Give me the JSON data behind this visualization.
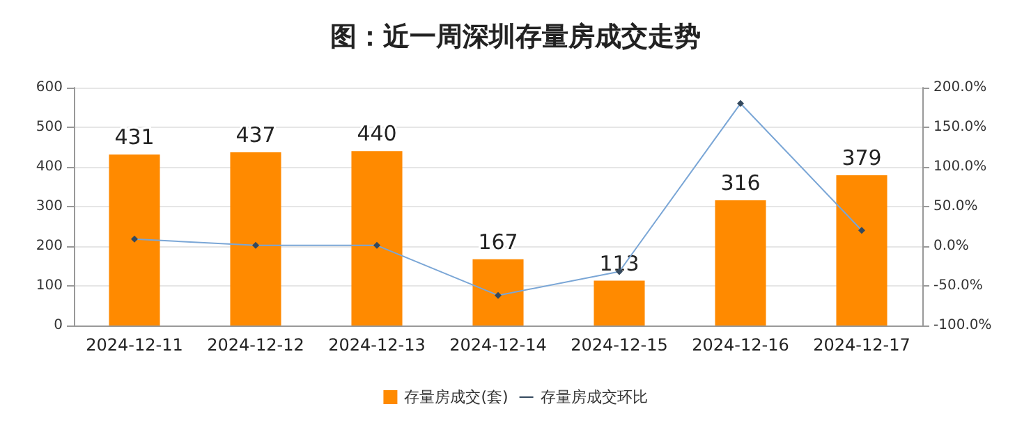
{
  "chart_data": {
    "type": "bar",
    "title": "图：近一周深圳存量房成交走势",
    "categories": [
      "2024-12-11",
      "2024-12-12",
      "2024-12-13",
      "2024-12-14",
      "2024-12-15",
      "2024-12-16",
      "2024-12-17"
    ],
    "series": [
      {
        "name": "存量房成交(套)",
        "color": "#ff8a00",
        "values": [
          431,
          437,
          440,
          167,
          113,
          316,
          379
        ],
        "value_labels": [
          "431",
          "437",
          "440",
          "167",
          "113",
          "316",
          "379"
        ]
      },
      {
        "name": "存量房成交环比",
        "type": "line",
        "axis": "y2",
        "color": "#7aa6d6",
        "marker": "diamond",
        "values": [
          9,
          1,
          1,
          -62,
          -32,
          180,
          20
        ]
      }
    ],
    "ylim": [
      0,
      600
    ],
    "yticks": [
      0,
      100,
      200,
      300,
      400,
      500,
      600
    ],
    "y2lim": [
      -100,
      200
    ],
    "y2ticks": [
      {
        "value": -100,
        "label": "-100.0%"
      },
      {
        "value": -50,
        "label": "-50.0%"
      },
      {
        "value": 0,
        "label": "0.0%"
      },
      {
        "value": 50,
        "label": "50.0%"
      },
      {
        "value": 100,
        "label": "100.0%"
      },
      {
        "value": 150,
        "label": "150.0%"
      },
      {
        "value": 200,
        "label": "200.0%"
      }
    ],
    "grid": "y",
    "legend": "bottom"
  }
}
